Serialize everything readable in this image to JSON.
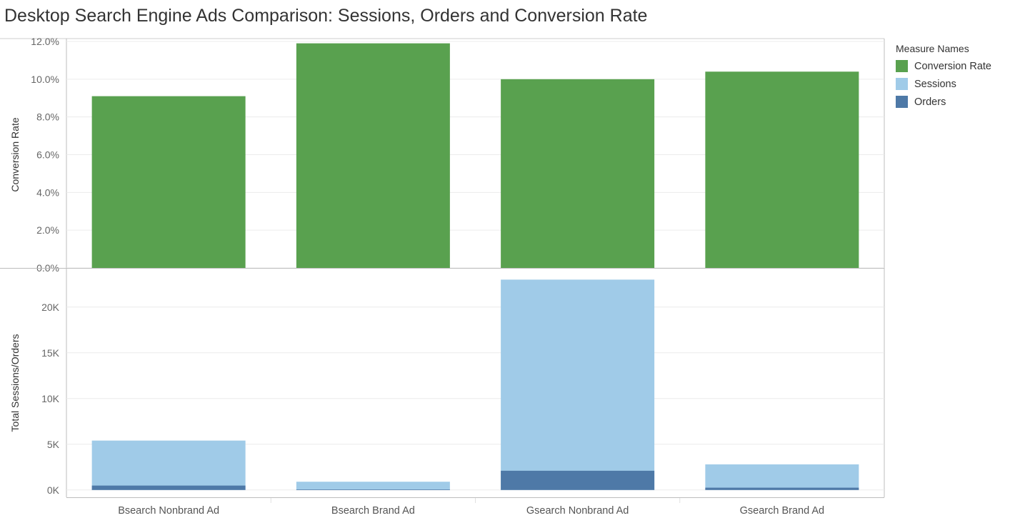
{
  "chart_data": {
    "type": "bar",
    "title": "Desktop Search Engine Ads Comparison: Sessions, Orders and Conversion Rate",
    "categories": [
      "Bsearch Nonbrand Ad",
      "Bsearch Brand Ad",
      "Gsearch Nonbrand Ad",
      "Gsearch Brand Ad"
    ],
    "legend": {
      "title": "Measure Names",
      "placement": "right",
      "entries": [
        "Conversion Rate",
        "Sessions",
        "Orders"
      ]
    },
    "panels": [
      {
        "ylabel": "Conversion Rate",
        "ylim": [
          0,
          12
        ],
        "ticks": [
          "0.0%",
          "2.0%",
          "4.0%",
          "6.0%",
          "8.0%",
          "10.0%",
          "12.0%"
        ],
        "tick_values": [
          0,
          2,
          4,
          6,
          8,
          10,
          12
        ],
        "series": [
          {
            "name": "Conversion Rate",
            "color": "#59a14f",
            "values": [
              9.1,
              11.9,
              10.0,
              10.4
            ]
          }
        ]
      },
      {
        "ylabel": "Total Sessions/Orders",
        "ylim": [
          -800,
          24200
        ],
        "ticks": [
          "0K",
          "5K",
          "10K",
          "15K",
          "20K"
        ],
        "tick_values": [
          0,
          5000,
          10000,
          15000,
          20000
        ],
        "series": [
          {
            "name": "Sessions",
            "color": "#a0cbe8",
            "values": [
              5400,
              900,
              23000,
              2800
            ]
          },
          {
            "name": "Orders",
            "color": "#4e79a7",
            "values": [
              480,
              60,
              2100,
              250
            ]
          }
        ]
      }
    ]
  }
}
